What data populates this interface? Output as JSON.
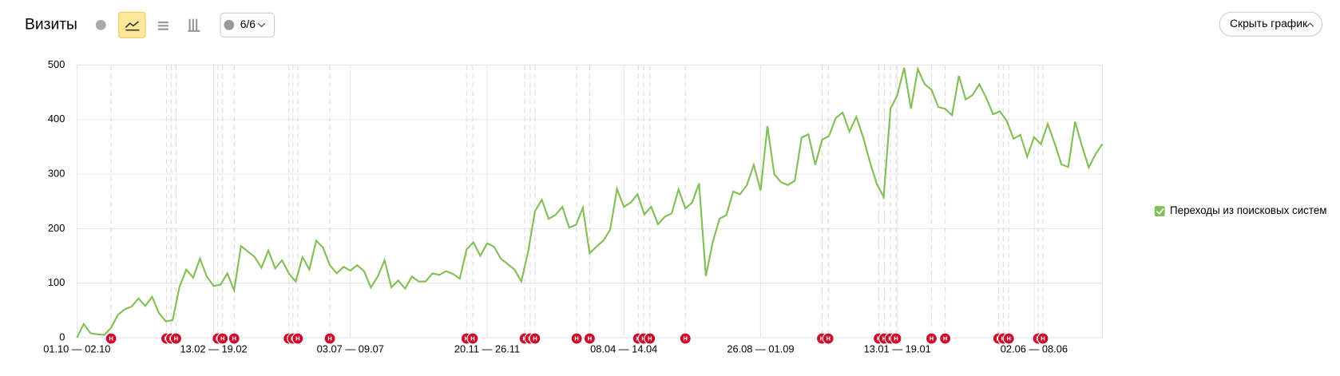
{
  "header": {
    "title": "Визиты",
    "comments": "6/6",
    "hide_button": "Скрыть график"
  },
  "chart_data": {
    "type": "line",
    "categories": [
      "01.10 — 02.10",
      null,
      null,
      null,
      null,
      null,
      null,
      null,
      null,
      null,
      null,
      null,
      null,
      null,
      null,
      null,
      null,
      null,
      null,
      null,
      "13.02 — 19.02",
      null,
      null,
      null,
      null,
      null,
      null,
      null,
      null,
      null,
      null,
      null,
      null,
      null,
      null,
      null,
      null,
      null,
      null,
      null,
      "03.07 — 09.07",
      null,
      null,
      null,
      null,
      null,
      null,
      null,
      null,
      null,
      null,
      null,
      null,
      null,
      null,
      null,
      null,
      null,
      null,
      null,
      "20.11 — 26.11",
      null,
      null,
      null,
      null,
      null,
      null,
      null,
      null,
      null,
      null,
      null,
      null,
      null,
      null,
      null,
      null,
      null,
      null,
      null,
      "08.04 — 14.04",
      null,
      null,
      null,
      null,
      null,
      null,
      null,
      null,
      null,
      null,
      null,
      null,
      null,
      null,
      null,
      null,
      null,
      null,
      null,
      "26.08 — 01.09",
      null,
      null,
      null,
      null,
      null,
      null,
      null,
      null,
      null,
      null,
      null,
      null,
      null,
      null,
      null,
      null,
      null,
      null,
      null,
      "13.01 — 19.01",
      null,
      null,
      null,
      null,
      null,
      null,
      null,
      null,
      null,
      null,
      null,
      null,
      null,
      null,
      null,
      null,
      null,
      null,
      null,
      "02.06 — 08.06",
      null,
      null,
      null,
      null,
      null,
      null,
      null,
      null,
      null,
      null
    ],
    "series": [
      {
        "name": "Переходы из поисковых систем",
        "color": "#82c057",
        "values": [
          0,
          25,
          8,
          6,
          5,
          18,
          42,
          52,
          57,
          72,
          58,
          75,
          45,
          30,
          32,
          93,
          125,
          110,
          145,
          112,
          95,
          97,
          118,
          87,
          168,
          158,
          148,
          128,
          160,
          127,
          142,
          118,
          103,
          148,
          125,
          178,
          165,
          133,
          118,
          130,
          123,
          133,
          122,
          92,
          112,
          142,
          92,
          105,
          90,
          112,
          103,
          103,
          118,
          115,
          122,
          117,
          108,
          162,
          175,
          150,
          173,
          167,
          145,
          135,
          125,
          103,
          158,
          232,
          253,
          218,
          225,
          240,
          202,
          207,
          238,
          155,
          167,
          178,
          198,
          273,
          240,
          248,
          263,
          226,
          240,
          208,
          222,
          228,
          272,
          237,
          248,
          283,
          113,
          175,
          218,
          225,
          268,
          263,
          280,
          317,
          270,
          388,
          300,
          285,
          280,
          288,
          367,
          373,
          317,
          363,
          370,
          403,
          413,
          378,
          405,
          368,
          322,
          282,
          258,
          420,
          445,
          495,
          420,
          493,
          465,
          455,
          423,
          420,
          408,
          480,
          437,
          445,
          465,
          440,
          410,
          415,
          398,
          365,
          372,
          332,
          368,
          355,
          392,
          357,
          318,
          313,
          396,
          352,
          312,
          337,
          355
        ]
      }
    ],
    "ylim": [
      0,
      500
    ],
    "yticks": [
      0,
      100,
      200,
      300,
      400,
      500
    ],
    "grid": true,
    "legend": "right",
    "annotations": [
      {
        "x": 5,
        "label": "Н"
      },
      {
        "x": 13.1,
        "label": "Н"
      },
      {
        "x": 13.8,
        "label": "Н"
      },
      {
        "x": 14.5,
        "label": "Н"
      },
      {
        "x": 20.6,
        "label": "Н"
      },
      {
        "x": 21.3,
        "label": "Н"
      },
      {
        "x": 23,
        "label": "Н"
      },
      {
        "x": 31,
        "label": "Н"
      },
      {
        "x": 31.6,
        "label": "Н"
      },
      {
        "x": 32.3,
        "label": "Н"
      },
      {
        "x": 37,
        "label": "Н"
      },
      {
        "x": 57,
        "label": "Н"
      },
      {
        "x": 57.9,
        "label": "Н"
      },
      {
        "x": 65.5,
        "label": "Н"
      },
      {
        "x": 66.3,
        "label": "Н"
      },
      {
        "x": 67,
        "label": "Н"
      },
      {
        "x": 73.1,
        "label": "Н"
      },
      {
        "x": 75,
        "label": "Н"
      },
      {
        "x": 82.1,
        "label": "Н"
      },
      {
        "x": 82.9,
        "label": "Н"
      },
      {
        "x": 83.8,
        "label": "Н"
      },
      {
        "x": 89,
        "label": "Н"
      },
      {
        "x": 109,
        "label": "Н"
      },
      {
        "x": 109.9,
        "label": "Н"
      },
      {
        "x": 117.3,
        "label": "Н"
      },
      {
        "x": 118.1,
        "label": "Н"
      },
      {
        "x": 119,
        "label": "Н"
      },
      {
        "x": 119.8,
        "label": "Н"
      },
      {
        "x": 125,
        "label": "Н"
      },
      {
        "x": 127,
        "label": "Н"
      },
      {
        "x": 134.8,
        "label": "Н"
      },
      {
        "x": 135.5,
        "label": "Н"
      },
      {
        "x": 136.3,
        "label": "Н"
      },
      {
        "x": 140.6,
        "label": "Н"
      },
      {
        "x": 141.3,
        "label": "Н"
      }
    ]
  }
}
